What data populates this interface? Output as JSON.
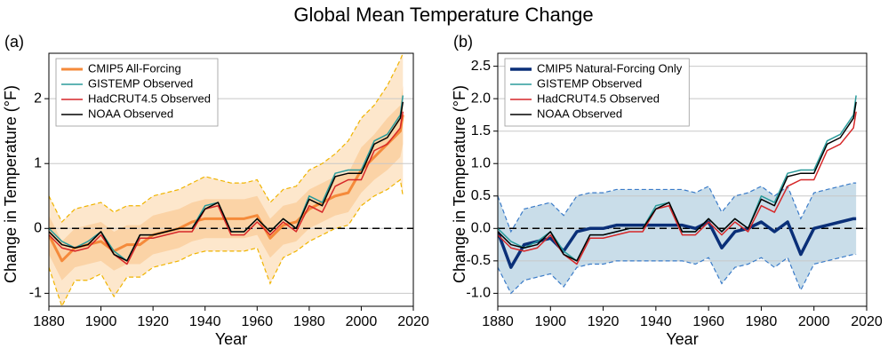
{
  "title": "Global Mean Temperature Change",
  "chart_data": [
    {
      "type": "line",
      "panel_label": "(a)",
      "xlabel": "Year",
      "ylabel": "Change in Temperature (°F)",
      "xlim": [
        1880,
        2020
      ],
      "xticks": [
        1880,
        1900,
        1920,
        1940,
        1960,
        1980,
        2000,
        2020
      ],
      "ylim": [
        -1.2,
        2.7
      ],
      "yticks": [
        -1,
        0,
        1,
        2
      ],
      "grid": true,
      "legend": "upper left",
      "x": [
        1880,
        1885,
        1890,
        1895,
        1900,
        1905,
        1910,
        1915,
        1920,
        1925,
        1930,
        1935,
        1940,
        1945,
        1950,
        1955,
        1960,
        1965,
        1970,
        1975,
        1980,
        1985,
        1990,
        1995,
        2000,
        2005,
        2010,
        2015,
        2016
      ],
      "bands": [
        {
          "color": "#fde7cc",
          "edge_color": "#f0b400",
          "lower": [
            -0.6,
            -1.2,
            -0.8,
            -0.8,
            -0.7,
            -1.05,
            -0.75,
            -0.75,
            -0.6,
            -0.55,
            -0.5,
            -0.4,
            -0.35,
            -0.35,
            -0.35,
            -0.35,
            -0.3,
            -0.85,
            -0.45,
            -0.35,
            -0.2,
            -0.1,
            0.0,
            0.05,
            0.35,
            0.5,
            0.6,
            0.75,
            0.5
          ],
          "upper": [
            0.5,
            0.1,
            0.3,
            0.35,
            0.4,
            0.25,
            0.35,
            0.35,
            0.5,
            0.55,
            0.6,
            0.7,
            0.8,
            0.75,
            0.7,
            0.7,
            0.75,
            0.4,
            0.6,
            0.65,
            0.9,
            1.0,
            1.15,
            1.35,
            1.7,
            1.9,
            2.2,
            2.6,
            2.7
          ]
        },
        {
          "color": "#fbd3a6",
          "lower": [
            -0.4,
            -0.8,
            -0.6,
            -0.55,
            -0.5,
            -0.65,
            -0.55,
            -0.55,
            -0.4,
            -0.35,
            -0.3,
            -0.2,
            -0.15,
            -0.15,
            -0.15,
            -0.15,
            -0.1,
            -0.45,
            -0.25,
            -0.2,
            0.0,
            0.1,
            0.2,
            0.25,
            0.55,
            0.75,
            0.9,
            1.1,
            1.3
          ],
          "upper": [
            0.2,
            -0.2,
            0.0,
            0.05,
            0.1,
            -0.05,
            0.05,
            0.05,
            0.2,
            0.25,
            0.3,
            0.4,
            0.45,
            0.45,
            0.45,
            0.45,
            0.5,
            0.15,
            0.35,
            0.4,
            0.6,
            0.7,
            0.8,
            0.85,
            1.25,
            1.45,
            1.7,
            1.9,
            2.2
          ]
        }
      ],
      "series": [
        {
          "name": "CMIP5 All-Forcing",
          "color": "#f58a3a",
          "line_width": 3,
          "values": [
            -0.1,
            -0.5,
            -0.3,
            -0.25,
            -0.2,
            -0.35,
            -0.25,
            -0.25,
            -0.1,
            -0.05,
            0.0,
            0.1,
            0.15,
            0.15,
            0.15,
            0.15,
            0.2,
            -0.15,
            0.05,
            0.1,
            0.3,
            0.4,
            0.5,
            0.55,
            0.9,
            1.1,
            1.3,
            1.5,
            1.75
          ]
        },
        {
          "name": "GISTEMP Observed",
          "color": "#2a9b9b",
          "line_width": 1.5,
          "values": [
            0.0,
            -0.2,
            -0.3,
            -0.2,
            -0.05,
            -0.35,
            -0.5,
            -0.1,
            -0.1,
            -0.05,
            0.0,
            0.0,
            0.35,
            0.4,
            -0.05,
            -0.05,
            0.15,
            -0.05,
            0.15,
            0.0,
            0.5,
            0.4,
            0.85,
            0.9,
            0.9,
            1.35,
            1.45,
            1.75,
            2.05
          ]
        },
        {
          "name": "HadCRUT4.5 Observed",
          "color": "#d62728",
          "line_width": 1.5,
          "values": [
            -0.1,
            -0.3,
            -0.35,
            -0.3,
            -0.1,
            -0.4,
            -0.55,
            -0.15,
            -0.15,
            -0.1,
            -0.05,
            -0.05,
            0.3,
            0.35,
            -0.1,
            -0.1,
            0.1,
            -0.1,
            0.1,
            -0.05,
            0.35,
            0.25,
            0.65,
            0.75,
            0.75,
            1.2,
            1.3,
            1.55,
            1.8
          ]
        },
        {
          "name": "NOAA Observed",
          "color": "#000000",
          "line_width": 1.5,
          "values": [
            -0.05,
            -0.25,
            -0.3,
            -0.25,
            -0.05,
            -0.4,
            -0.5,
            -0.1,
            -0.1,
            -0.05,
            0.0,
            0.0,
            0.3,
            0.4,
            -0.05,
            -0.05,
            0.15,
            -0.05,
            0.15,
            0.0,
            0.45,
            0.35,
            0.8,
            0.85,
            0.85,
            1.3,
            1.4,
            1.7,
            1.95
          ]
        }
      ]
    },
    {
      "type": "line",
      "panel_label": "(b)",
      "xlabel": "Year",
      "ylabel": "Change in Temperature (°F)",
      "xlim": [
        1880,
        2020
      ],
      "xticks": [
        1880,
        1900,
        1920,
        1940,
        1960,
        1980,
        2000,
        2020
      ],
      "ylim": [
        -1.2,
        2.7
      ],
      "yticks": [
        {
          "value": -1,
          "label": "-1.0"
        },
        -0.5,
        {
          "value": 0,
          "label": "0.0"
        },
        0.5,
        {
          "value": 1,
          "label": "1.0"
        },
        1.5,
        {
          "value": 2,
          "label": "2.0"
        },
        2.5
      ],
      "grid": true,
      "legend": "upper left",
      "x": [
        1880,
        1885,
        1890,
        1895,
        1900,
        1905,
        1910,
        1915,
        1920,
        1925,
        1930,
        1935,
        1940,
        1945,
        1950,
        1955,
        1960,
        1965,
        1970,
        1975,
        1980,
        1985,
        1990,
        1995,
        2000,
        2005,
        2010,
        2015,
        2016
      ],
      "bands": [
        {
          "color": "#c9dde9",
          "edge_color": "#3a7bc8",
          "lower": [
            -0.6,
            -1.0,
            -0.8,
            -0.75,
            -0.7,
            -0.9,
            -0.6,
            -0.55,
            -0.55,
            -0.5,
            -0.5,
            -0.5,
            -0.5,
            -0.5,
            -0.5,
            -0.55,
            -0.45,
            -0.85,
            -0.6,
            -0.55,
            -0.45,
            -0.6,
            -0.45,
            -0.95,
            -0.55,
            -0.5,
            -0.45,
            -0.4,
            -0.4
          ],
          "upper": [
            0.5,
            -0.05,
            0.3,
            0.35,
            0.4,
            0.2,
            0.5,
            0.55,
            0.55,
            0.6,
            0.6,
            0.6,
            0.6,
            0.6,
            0.6,
            0.55,
            0.65,
            0.25,
            0.5,
            0.55,
            0.65,
            0.5,
            0.65,
            0.15,
            0.55,
            0.6,
            0.65,
            0.7,
            0.7
          ]
        }
      ],
      "series": [
        {
          "name": "CMIP5 Natural-Forcing Only",
          "color": "#0a2f78",
          "line_width": 3.5,
          "values": [
            -0.05,
            -0.6,
            -0.25,
            -0.2,
            -0.15,
            -0.35,
            -0.05,
            0.0,
            0.0,
            0.05,
            0.05,
            0.05,
            0.05,
            0.05,
            0.05,
            0.0,
            0.1,
            -0.3,
            -0.05,
            0.0,
            0.1,
            -0.05,
            0.1,
            -0.4,
            0.0,
            0.05,
            0.1,
            0.15,
            0.15
          ]
        },
        {
          "name": "GISTEMP Observed",
          "color": "#2a9b9b",
          "line_width": 1.5,
          "values": [
            0.0,
            -0.2,
            -0.3,
            -0.2,
            -0.05,
            -0.35,
            -0.5,
            -0.1,
            -0.1,
            -0.05,
            0.0,
            0.0,
            0.35,
            0.4,
            -0.05,
            -0.05,
            0.15,
            -0.05,
            0.15,
            0.0,
            0.5,
            0.4,
            0.85,
            0.9,
            0.9,
            1.35,
            1.45,
            1.75,
            2.05
          ]
        },
        {
          "name": "HadCRUT4.5 Observed",
          "color": "#d62728",
          "line_width": 1.5,
          "values": [
            -0.1,
            -0.3,
            -0.35,
            -0.3,
            -0.1,
            -0.4,
            -0.55,
            -0.15,
            -0.15,
            -0.1,
            -0.05,
            -0.05,
            0.3,
            0.35,
            -0.1,
            -0.1,
            0.1,
            -0.1,
            0.1,
            -0.05,
            0.35,
            0.25,
            0.65,
            0.75,
            0.75,
            1.2,
            1.3,
            1.55,
            1.8
          ]
        },
        {
          "name": "NOAA Observed",
          "color": "#000000",
          "line_width": 1.5,
          "values": [
            -0.05,
            -0.25,
            -0.3,
            -0.25,
            -0.05,
            -0.4,
            -0.5,
            -0.1,
            -0.1,
            -0.05,
            0.0,
            0.0,
            0.3,
            0.4,
            -0.05,
            -0.05,
            0.15,
            -0.05,
            0.15,
            0.0,
            0.45,
            0.35,
            0.8,
            0.85,
            0.85,
            1.3,
            1.4,
            1.7,
            1.95
          ]
        }
      ]
    }
  ]
}
